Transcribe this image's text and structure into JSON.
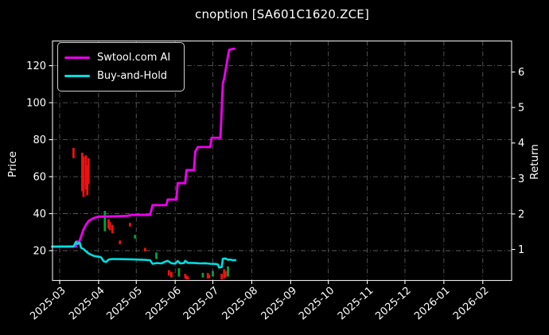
{
  "title": "cnoption [SA601C1620.ZCE]",
  "legend": [
    {
      "label": "Swtool.com AI",
      "color_key": "magenta"
    },
    {
      "label": "Buy-and-Hold",
      "color_key": "cyan"
    }
  ],
  "axes": {
    "left_label": "Price",
    "right_label": "Return",
    "left_ticks": [
      20,
      40,
      60,
      80,
      100,
      120
    ],
    "right_ticks": [
      1,
      2,
      3,
      4,
      5,
      6
    ],
    "x_ticks": [
      "2025-03",
      "2025-04",
      "2025-05",
      "2025-06",
      "2025-07",
      "2025-08",
      "2025-09",
      "2025-10",
      "2025-11",
      "2025-12",
      "2026-01",
      "2026-02"
    ]
  },
  "colors": {
    "background": "#000000",
    "text": "#ffffff",
    "grid": "#5a5a5a",
    "axis_border": "#e8e8e8",
    "magenta": "#ec00ec",
    "cyan": "#00dede",
    "candle_red": "#ee1111",
    "candle_green": "#00a33a"
  },
  "chart_data": {
    "type": "line",
    "title": "cnoption [SA601C1620.ZCE]",
    "xlabel": "",
    "ylabel_left": "Price",
    "ylabel_right": "Return",
    "x_range": [
      "2025-02-23",
      "2026-02-28"
    ],
    "ylim_price": [
      3.8,
      133.5
    ],
    "right_axis_return_ticks": [
      1,
      2,
      3,
      4,
      5,
      6
    ],
    "grid": true,
    "legend_position": "upper-left",
    "series": [
      {
        "name": "Swtool.com AI",
        "color_key": "magenta",
        "points": [
          [
            "2025-02-23",
            22.2
          ],
          [
            "2025-03-14",
            22.2
          ],
          [
            "2025-03-15",
            25.0
          ],
          [
            "2025-03-16",
            23.8
          ],
          [
            "2025-03-18",
            27.5
          ],
          [
            "2025-03-20",
            31.5
          ],
          [
            "2025-03-22",
            34.0
          ],
          [
            "2025-03-24",
            36.0
          ],
          [
            "2025-03-28",
            37.6
          ],
          [
            "2025-04-01",
            38.4
          ],
          [
            "2025-04-14",
            38.6
          ],
          [
            "2025-04-24",
            38.8
          ],
          [
            "2025-04-27",
            39.3
          ],
          [
            "2025-05-12",
            39.3
          ],
          [
            "2025-05-14",
            44.6
          ],
          [
            "2025-05-25",
            44.6
          ],
          [
            "2025-05-26",
            47.6
          ],
          [
            "2025-06-02",
            47.6
          ],
          [
            "2025-06-03",
            56.5
          ],
          [
            "2025-06-09",
            56.5
          ],
          [
            "2025-06-10",
            63.6
          ],
          [
            "2025-06-16",
            63.6
          ],
          [
            "2025-06-17",
            73.5
          ],
          [
            "2025-06-19",
            76.0
          ],
          [
            "2025-06-29",
            76.0
          ],
          [
            "2025-06-30",
            81.0
          ],
          [
            "2025-07-07",
            81.0
          ],
          [
            "2025-07-08",
            96.0
          ],
          [
            "2025-07-09",
            110.5
          ],
          [
            "2025-07-10",
            113.0
          ],
          [
            "2025-07-11",
            117.0
          ],
          [
            "2025-07-13",
            125.0
          ],
          [
            "2025-07-14",
            128.6
          ],
          [
            "2025-07-18",
            129.2
          ]
        ]
      },
      {
        "name": "Buy-and-Hold",
        "color_key": "cyan",
        "points": [
          [
            "2025-02-23",
            22.2
          ],
          [
            "2025-03-10",
            22.3
          ],
          [
            "2025-03-12",
            22.3
          ],
          [
            "2025-03-14",
            24.8
          ],
          [
            "2025-03-15",
            23.6
          ],
          [
            "2025-03-17",
            24.4
          ],
          [
            "2025-03-18",
            21.6
          ],
          [
            "2025-03-20",
            20.9
          ],
          [
            "2025-03-22",
            19.6
          ],
          [
            "2025-03-24",
            18.5
          ],
          [
            "2025-03-28",
            17.2
          ],
          [
            "2025-04-01",
            16.7
          ],
          [
            "2025-04-03",
            16.4
          ],
          [
            "2025-04-05",
            14.3
          ],
          [
            "2025-04-07",
            13.9
          ],
          [
            "2025-04-09",
            15.2
          ],
          [
            "2025-04-12",
            15.5
          ],
          [
            "2025-04-20",
            15.4
          ],
          [
            "2025-04-27",
            15.3
          ],
          [
            "2025-05-06",
            15.1
          ],
          [
            "2025-05-08",
            15.0
          ],
          [
            "2025-05-12",
            14.8
          ],
          [
            "2025-05-14",
            12.9
          ],
          [
            "2025-05-17",
            13.3
          ],
          [
            "2025-05-21",
            13.1
          ],
          [
            "2025-05-24",
            14.0
          ],
          [
            "2025-05-26",
            14.5
          ],
          [
            "2025-05-29",
            13.2
          ],
          [
            "2025-06-01",
            13.0
          ],
          [
            "2025-06-03",
            14.4
          ],
          [
            "2025-06-05",
            13.1
          ],
          [
            "2025-06-08",
            13.3
          ],
          [
            "2025-06-09",
            14.5
          ],
          [
            "2025-06-11",
            13.4
          ],
          [
            "2025-06-17",
            13.3
          ],
          [
            "2025-06-21",
            13.1
          ],
          [
            "2025-06-25",
            13.2
          ],
          [
            "2025-06-29",
            12.9
          ],
          [
            "2025-07-03",
            12.8
          ],
          [
            "2025-07-05",
            12.5
          ],
          [
            "2025-07-06",
            10.9
          ],
          [
            "2025-07-08",
            11.1
          ],
          [
            "2025-07-09",
            15.6
          ],
          [
            "2025-07-11",
            15.8
          ],
          [
            "2025-07-13",
            15.1
          ],
          [
            "2025-07-15",
            15.2
          ],
          [
            "2025-07-17",
            14.8
          ],
          [
            "2025-07-19",
            14.9
          ]
        ]
      }
    ],
    "candles": [
      [
        "2025-03-12",
        70.0,
        75.5,
        "r"
      ],
      [
        "2025-03-19",
        52.0,
        73.0,
        "r"
      ],
      [
        "2025-03-20",
        49.0,
        71.0,
        "r"
      ],
      [
        "2025-03-22",
        53.0,
        71.5,
        "r"
      ],
      [
        "2025-03-23",
        50.0,
        66.0,
        "r"
      ],
      [
        "2025-03-24",
        56.0,
        70.0,
        "r"
      ],
      [
        "2025-04-06",
        30.5,
        41.5,
        "g"
      ],
      [
        "2025-04-09",
        32.0,
        37.0,
        "r"
      ],
      [
        "2025-04-10",
        31.0,
        35.5,
        "r"
      ],
      [
        "2025-04-12",
        29.5,
        34.0,
        "r"
      ],
      [
        "2025-04-18",
        23.5,
        25.5,
        "r"
      ],
      [
        "2025-04-26",
        33.0,
        35.0,
        "r"
      ],
      [
        "2025-04-30",
        26.5,
        28.5,
        "g"
      ],
      [
        "2025-05-08",
        19.5,
        21.5,
        "r"
      ],
      [
        "2025-05-17",
        15.5,
        19.0,
        "g"
      ],
      [
        "2025-05-27",
        6.5,
        9.5,
        "r"
      ],
      [
        "2025-05-29",
        5.5,
        8.5,
        "r"
      ],
      [
        "2025-06-04",
        6.0,
        10.5,
        "g"
      ],
      [
        "2025-06-09",
        5.0,
        7.5,
        "r"
      ],
      [
        "2025-06-10",
        4.5,
        6.5,
        "r"
      ],
      [
        "2025-06-11",
        4.5,
        6.0,
        "r"
      ],
      [
        "2025-06-23",
        5.5,
        8.0,
        "g"
      ],
      [
        "2025-06-27",
        5.0,
        8.0,
        "r"
      ],
      [
        "2025-06-28",
        5.0,
        7.0,
        "r"
      ],
      [
        "2025-07-01",
        6.0,
        9.0,
        "g"
      ],
      [
        "2025-07-08",
        4.5,
        7.5,
        "r"
      ],
      [
        "2025-07-10",
        5.0,
        10.0,
        "r"
      ],
      [
        "2025-07-11",
        5.5,
        9.0,
        "r"
      ],
      [
        "2025-07-13",
        6.0,
        11.5,
        "g"
      ]
    ]
  }
}
